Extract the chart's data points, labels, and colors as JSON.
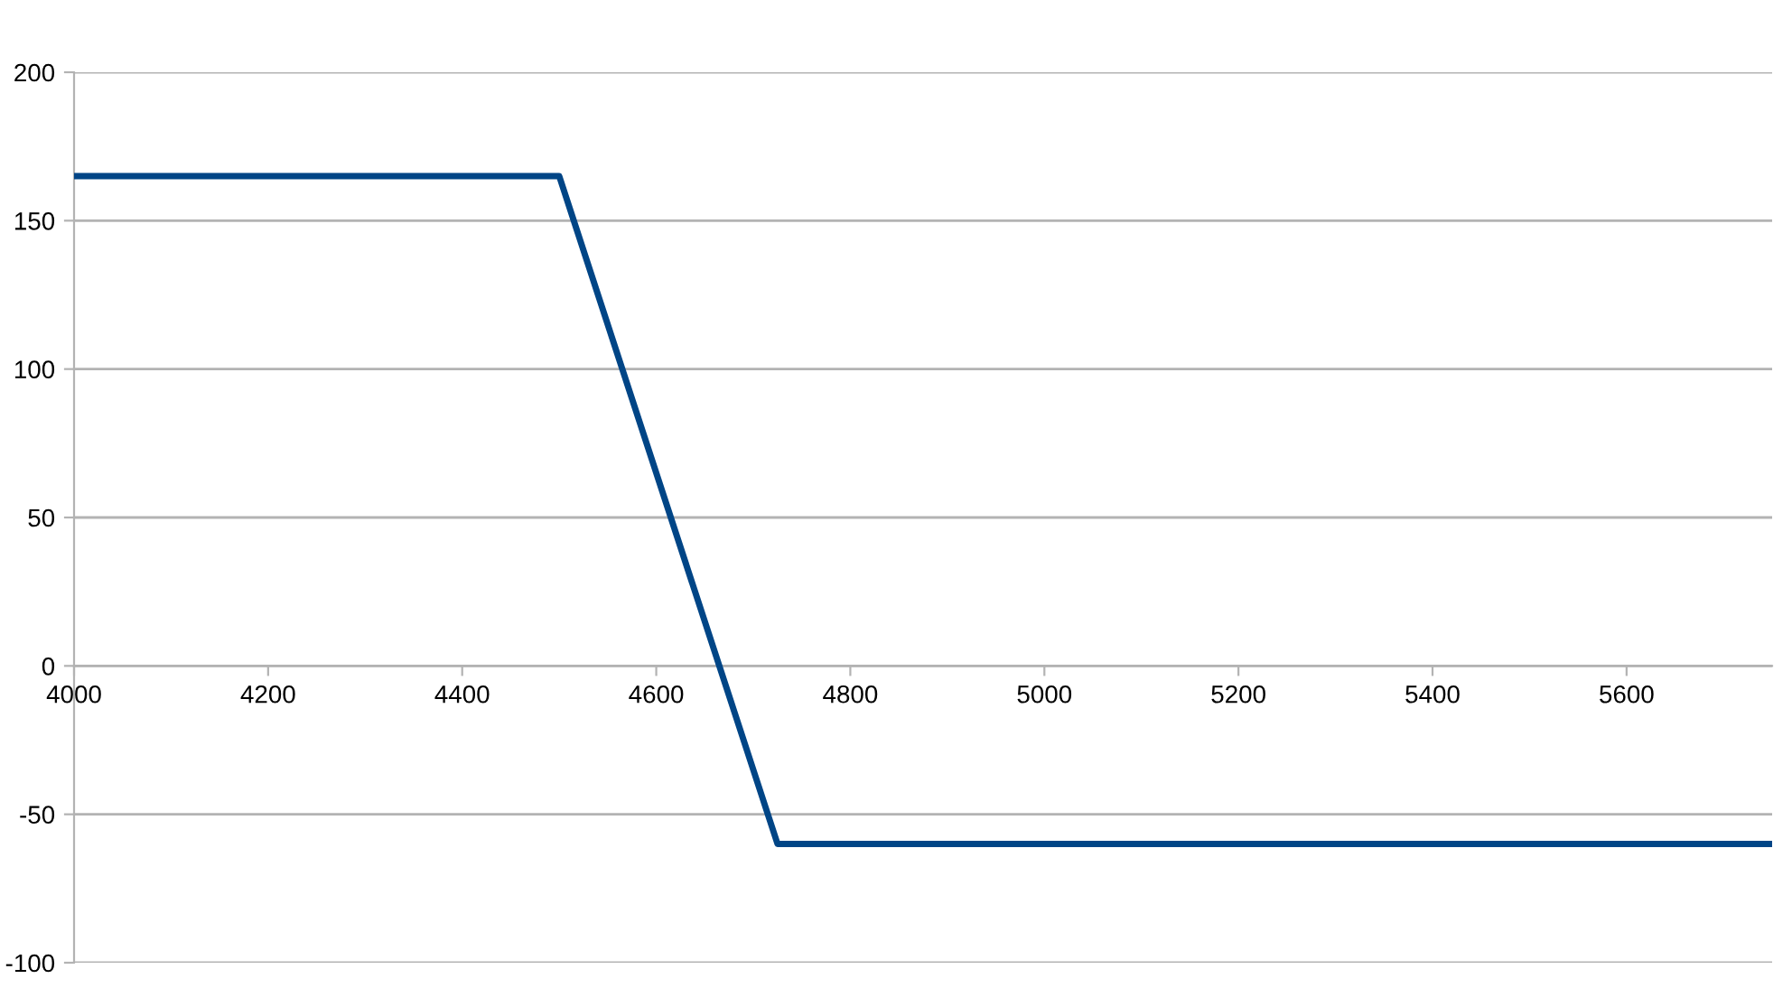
{
  "chart_data": {
    "type": "line",
    "x": [
      4000,
      4500,
      4725,
      5750
    ],
    "series": [
      {
        "color": "#004586",
        "values": [
          165,
          165,
          -60,
          -60
        ]
      }
    ],
    "xlim": [
      4000,
      5750
    ],
    "xticks": [
      4000,
      4200,
      4400,
      4600,
      4800,
      5000,
      5200,
      5400,
      5600
    ],
    "ylim": [
      -100,
      200
    ],
    "yticks": [
      -100,
      -50,
      0,
      50,
      100,
      150,
      200
    ],
    "grid": "y",
    "marker": "none",
    "line_style": "solid"
  }
}
